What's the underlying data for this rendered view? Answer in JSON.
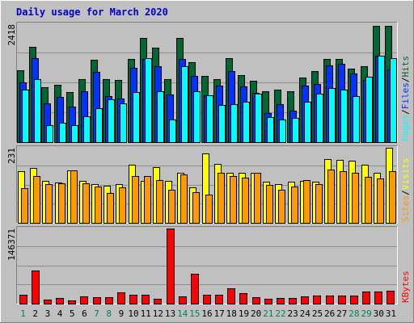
{
  "chart_data": {
    "type": "bar",
    "title": "Daily usage for March 2020",
    "x": {
      "days": [
        "1",
        "2",
        "3",
        "4",
        "5",
        "6",
        "7",
        "8",
        "9",
        "10",
        "11",
        "12",
        "13",
        "14",
        "15",
        "16",
        "17",
        "18",
        "19",
        "20",
        "21",
        "22",
        "23",
        "24",
        "25",
        "26",
        "27",
        "28",
        "29",
        "30",
        "31"
      ],
      "weekend_days": [
        "1",
        "7",
        "8",
        "14",
        "15",
        "21",
        "22",
        "28",
        "29"
      ]
    },
    "panels": [
      {
        "ylabel_parts": [
          "Pages",
          "Files",
          "Hits"
        ],
        "ymax_label": "2418",
        "ylim": [
          0,
          2418
        ],
        "series": [
          {
            "name": "Hits",
            "color": "#006633",
            "values": [
              1470,
              1950,
              1130,
              1180,
              1030,
              1300,
              1690,
              1300,
              1270,
              1700,
              2130,
              1930,
              1300,
              2130,
              1640,
              1360,
              1290,
              1730,
              1370,
              1260,
              1040,
              1080,
              1050,
              1330,
              1450,
              1700,
              1710,
              1500,
              1560,
              2380,
              2380
            ]
          },
          {
            "name": "Files",
            "color": "#0033ff",
            "values": [
              1230,
              1730,
              800,
              930,
              730,
              1040,
              1440,
              950,
              900,
              1520,
              1700,
              1560,
              980,
              1700,
              1360,
              960,
              1160,
              1460,
              1150,
              1010,
              600,
              780,
              640,
              1160,
              1190,
              1570,
              1600,
              1410,
              1270,
              1770,
              1490
            ]
          },
          {
            "name": "Pages",
            "color": "#00ffff",
            "values": [
              1080,
              1290,
              350,
              390,
              340,
              530,
              690,
              880,
              800,
              1030,
              1730,
              1050,
              470,
              1550,
              1040,
              960,
              760,
              780,
              830,
              990,
              520,
              470,
              500,
              820,
              1000,
              1110,
              1070,
              940,
              1340,
              1780,
              1730
            ]
          }
        ]
      },
      {
        "ylabel_parts": [
          "Sites",
          "Visits"
        ],
        "ymax_label": "231",
        "ylim": [
          0,
          231
        ],
        "series": [
          {
            "name": "Visits",
            "color": "#ffff00",
            "values": [
              160,
              170,
              128,
              124,
              162,
              130,
              120,
              115,
              120,
              179,
              130,
              171,
              130,
              155,
              109,
              214,
              182,
              154,
              155,
              153,
              127,
              120,
              127,
              128,
              126,
              196,
              194,
              192,
              180,
              154,
              231
            ]
          },
          {
            "name": "Sites",
            "color": "#ff9900",
            "values": [
              106,
              144,
              119,
              122,
              162,
              121,
              112,
              93,
              109,
              145,
              145,
              131,
              103,
              149,
              94,
              88,
              153,
              144,
              138,
              153,
              117,
              103,
              112,
              131,
              119,
              164,
              158,
              155,
              142,
              136,
              160
            ]
          }
        ]
      },
      {
        "ylabel_parts": [
          "KBytes"
        ],
        "ymax_label": "146371",
        "ylim": [
          0,
          146371
        ],
        "series": [
          {
            "name": "KBytes",
            "color": "#ff0000",
            "values": [
              16600,
              65000,
              8400,
              11200,
              6900,
              14600,
              13200,
              13100,
              21700,
              16600,
              17300,
              10000,
              146371,
              14400,
              58200,
              16600,
              18000,
              29300,
              19800,
              12600,
              9100,
              11400,
              11500,
              13600,
              16500,
              16100,
              15300,
              16500,
              23100,
              23700,
              25800
            ]
          }
        ]
      }
    ],
    "colors": {
      "background": "#c0c0c0",
      "title": "#0000cc",
      "label_separator": "#000000",
      "weekday_label": "#000000",
      "weekend_label": "#00805c"
    }
  }
}
